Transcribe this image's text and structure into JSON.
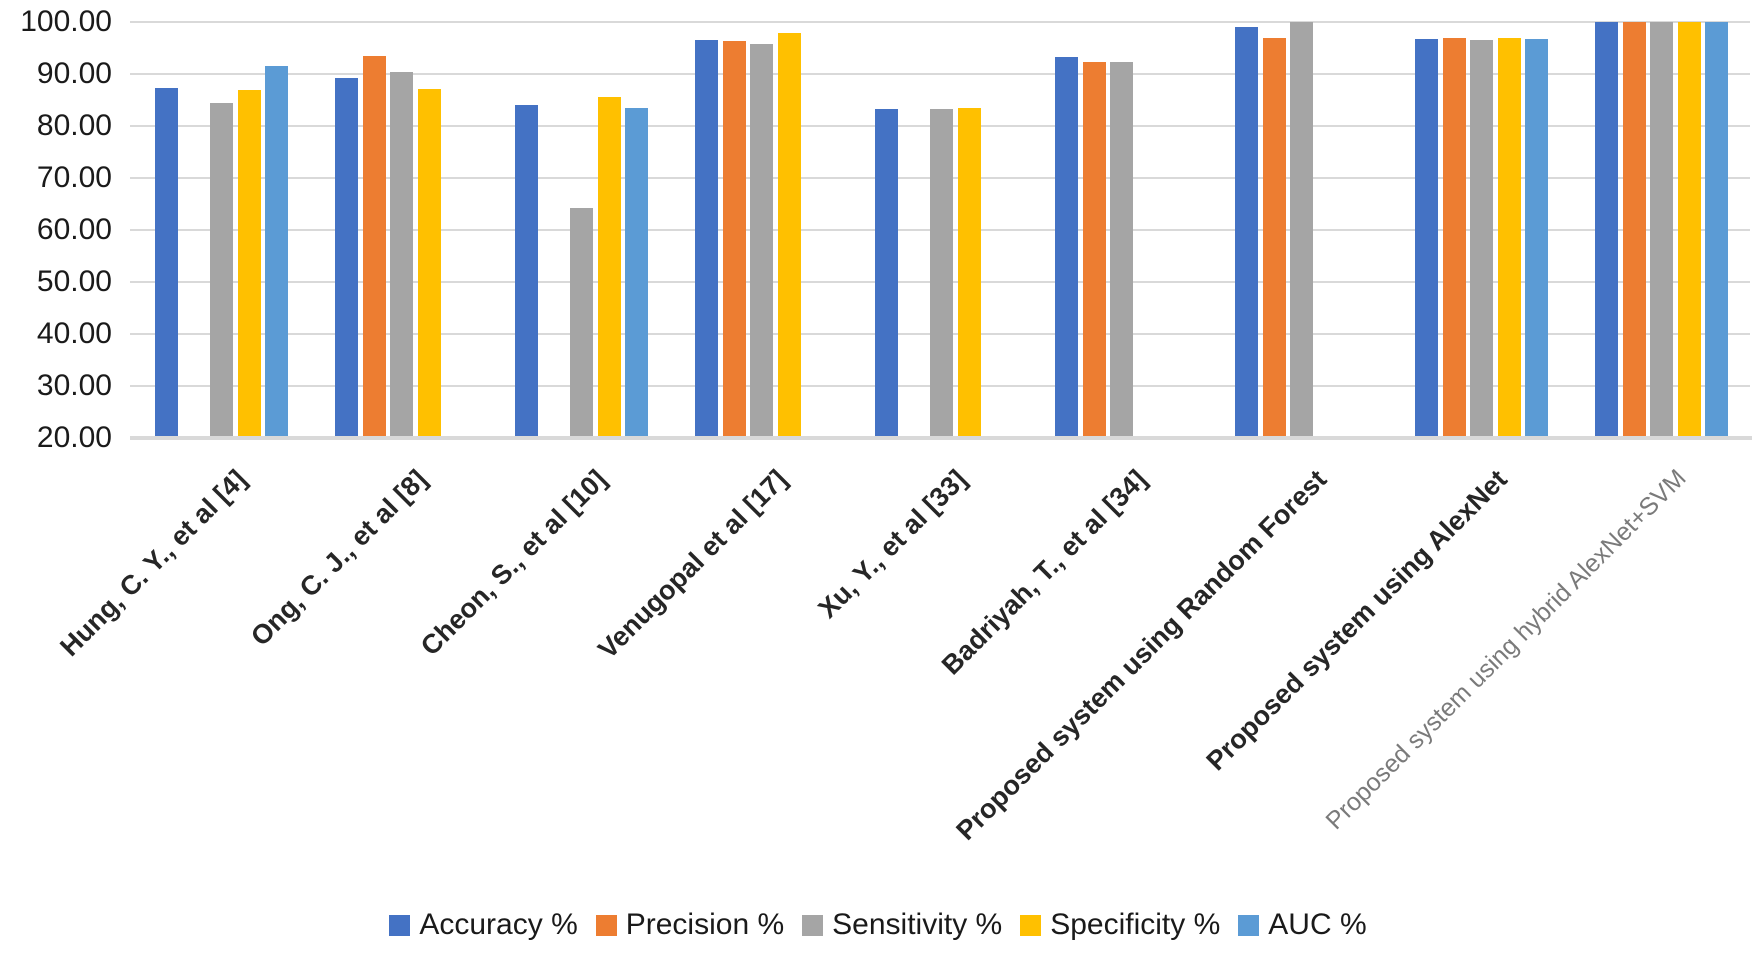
{
  "chart_data": {
    "type": "bar",
    "title": "",
    "xlabel": "",
    "ylabel": "",
    "categories": [
      "Hung, C. Y., et al [4]",
      "Ong, C. J., et al [8]",
      "Cheon, S., et al [10]",
      "Venugopal et al [17]",
      "Xu, Y.,  et al [33]",
      "Badriyah, T., et al [34]",
      "Proposed system using Random Forest",
      "Proposed system using AlexNet",
      "Proposed system using hybrid AlexNet+SVM"
    ],
    "series": [
      {
        "name": "Accuracy %",
        "color": "#4472C4",
        "values": [
          87.3,
          89.2,
          84.0,
          96.5,
          83.3,
          93.3,
          99.0,
          96.7,
          100.0
        ]
      },
      {
        "name": "Precision %",
        "color": "#ED7D31",
        "values": [
          null,
          93.4,
          null,
          96.3,
          null,
          92.3,
          97.0,
          97.0,
          100.0
        ]
      },
      {
        "name": "Sensitivity %",
        "color": "#A5A5A5",
        "values": [
          84.5,
          90.3,
          64.3,
          95.7,
          83.3,
          92.3,
          100.0,
          96.5,
          100.0
        ]
      },
      {
        "name": "Specificity %",
        "color": "#FFC000",
        "values": [
          87.0,
          87.2,
          85.5,
          97.8,
          83.5,
          null,
          null,
          96.9,
          100.0
        ]
      },
      {
        "name": "AUC %",
        "color": "#5B9BD5",
        "values": [
          91.5,
          null,
          83.4,
          null,
          null,
          null,
          null,
          96.7,
          100.0
        ]
      }
    ],
    "ylim": [
      20,
      100
    ],
    "ytick_step": 10,
    "ytick_labels": [
      "100.00",
      "90.00",
      "80.00",
      "70.00",
      "60.00",
      "50.00",
      "40.00",
      "30.00",
      "20.00"
    ],
    "grid": true,
    "legend_position": "bottom",
    "gridline_color": "#D9D9D9",
    "category_label_color": "#262626",
    "muted_category_index": 8,
    "muted_category_color": "#7A7A7A"
  }
}
